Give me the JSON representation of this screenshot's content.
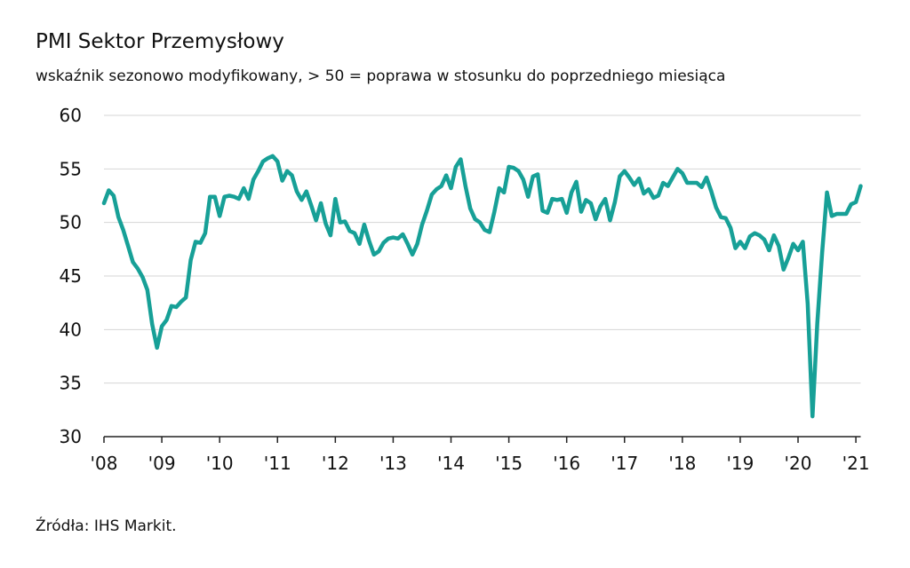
{
  "chart_data": {
    "type": "line",
    "title": "PMI Sektor Przemysłowy",
    "subtitle": "wskaźnik sezonowo modyfikowany, > 50 = poprawa w stosunku do poprzedniego miesiąca",
    "source": "Źródła: IHS Markit.",
    "grid": true,
    "xlim": [
      2008,
      2021.083
    ],
    "ylim": [
      30,
      60
    ],
    "yticks": [
      30,
      35,
      40,
      45,
      50,
      55,
      60
    ],
    "xticks": [
      {
        "value": 2008,
        "label": "'08"
      },
      {
        "value": 2009,
        "label": "'09"
      },
      {
        "value": 2010,
        "label": "'10"
      },
      {
        "value": 2011,
        "label": "'11"
      },
      {
        "value": 2012,
        "label": "'12"
      },
      {
        "value": 2013,
        "label": "'13"
      },
      {
        "value": 2014,
        "label": "'14"
      },
      {
        "value": 2015,
        "label": "'15"
      },
      {
        "value": 2016,
        "label": "'16"
      },
      {
        "value": 2017,
        "label": "'17"
      },
      {
        "value": 2018,
        "label": "'18"
      },
      {
        "value": 2019,
        "label": "'19"
      },
      {
        "value": 2020,
        "label": "'20"
      },
      {
        "value": 2021,
        "label": "'21"
      }
    ],
    "x": [
      2008,
      2008.083,
      2008.167,
      2008.25,
      2008.333,
      2008.417,
      2008.5,
      2008.583,
      2008.667,
      2008.75,
      2008.833,
      2008.917,
      2009,
      2009.083,
      2009.167,
      2009.25,
      2009.333,
      2009.417,
      2009.5,
      2009.583,
      2009.667,
      2009.75,
      2009.833,
      2009.917,
      2010,
      2010.083,
      2010.167,
      2010.25,
      2010.333,
      2010.417,
      2010.5,
      2010.583,
      2010.667,
      2010.75,
      2010.833,
      2010.917,
      2011,
      2011.083,
      2011.167,
      2011.25,
      2011.333,
      2011.417,
      2011.5,
      2011.583,
      2011.667,
      2011.75,
      2011.833,
      2011.917,
      2012,
      2012.083,
      2012.167,
      2012.25,
      2012.333,
      2012.417,
      2012.5,
      2012.583,
      2012.667,
      2012.75,
      2012.833,
      2012.917,
      2013,
      2013.083,
      2013.167,
      2013.25,
      2013.333,
      2013.417,
      2013.5,
      2013.583,
      2013.667,
      2013.75,
      2013.833,
      2013.917,
      2014,
      2014.083,
      2014.167,
      2014.25,
      2014.333,
      2014.417,
      2014.5,
      2014.583,
      2014.667,
      2014.75,
      2014.833,
      2014.917,
      2015,
      2015.083,
      2015.167,
      2015.25,
      2015.333,
      2015.417,
      2015.5,
      2015.583,
      2015.667,
      2015.75,
      2015.833,
      2015.917,
      2016,
      2016.083,
      2016.167,
      2016.25,
      2016.333,
      2016.417,
      2016.5,
      2016.583,
      2016.667,
      2016.75,
      2016.833,
      2016.917,
      2017,
      2017.083,
      2017.167,
      2017.25,
      2017.333,
      2017.417,
      2017.5,
      2017.583,
      2017.667,
      2017.75,
      2017.833,
      2017.917,
      2018,
      2018.083,
      2018.167,
      2018.25,
      2018.333,
      2018.417,
      2018.5,
      2018.583,
      2018.667,
      2018.75,
      2018.833,
      2018.917,
      2019,
      2019.083,
      2019.167,
      2019.25,
      2019.333,
      2019.417,
      2019.5,
      2019.583,
      2019.667,
      2019.75,
      2019.833,
      2019.917,
      2020,
      2020.083,
      2020.167,
      2020.25,
      2020.333,
      2020.417,
      2020.5,
      2020.583,
      2020.667,
      2020.75,
      2020.833,
      2020.917,
      2021,
      2021.083
    ],
    "series": [
      {
        "color": "#17a097",
        "values": [
          51.8,
          53.0,
          52.5,
          50.5,
          49.3,
          47.8,
          46.3,
          45.7,
          44.9,
          43.7,
          40.5,
          38.3,
          40.3,
          40.9,
          42.2,
          42.1,
          42.6,
          43.0,
          46.5,
          48.2,
          48.1,
          49.0,
          52.4,
          52.4,
          50.6,
          52.4,
          52.5,
          52.4,
          52.2,
          53.2,
          52.2,
          54.0,
          54.8,
          55.7,
          56.0,
          56.2,
          55.7,
          53.9,
          54.8,
          54.4,
          52.9,
          52.1,
          52.9,
          51.6,
          50.2,
          51.8,
          49.9,
          48.8,
          52.2,
          50.0,
          50.1,
          49.2,
          49.0,
          48.0,
          49.8,
          48.3,
          47.0,
          47.3,
          48.1,
          48.5,
          48.6,
          48.5,
          48.9,
          48.0,
          47.0,
          48.0,
          49.8,
          51.1,
          52.6,
          53.1,
          53.4,
          54.4,
          53.2,
          55.2,
          55.9,
          53.4,
          51.3,
          50.3,
          50.0,
          49.3,
          49.1,
          51.0,
          53.2,
          52.8,
          55.2,
          55.1,
          54.8,
          54.0,
          52.4,
          54.3,
          54.5,
          51.1,
          50.9,
          52.2,
          52.1,
          52.2,
          50.9,
          52.8,
          53.8,
          51.0,
          52.1,
          51.8,
          50.3,
          51.5,
          52.2,
          50.2,
          51.9,
          54.3,
          54.8,
          54.2,
          53.5,
          54.1,
          52.7,
          53.1,
          52.3,
          52.5,
          53.7,
          53.4,
          54.2,
          55.0,
          54.6,
          53.7,
          53.7,
          53.7,
          53.3,
          54.2,
          52.9,
          51.4,
          50.5,
          50.4,
          49.5,
          47.6,
          48.2,
          47.6,
          48.7,
          49.0,
          48.8,
          48.4,
          47.4,
          48.8,
          47.8,
          45.6,
          46.7,
          48.0,
          47.4,
          48.2,
          42.4,
          31.9,
          40.6,
          47.2,
          52.8,
          50.6,
          50.8,
          50.8,
          50.8,
          51.7,
          51.9,
          53.4
        ]
      }
    ]
  }
}
